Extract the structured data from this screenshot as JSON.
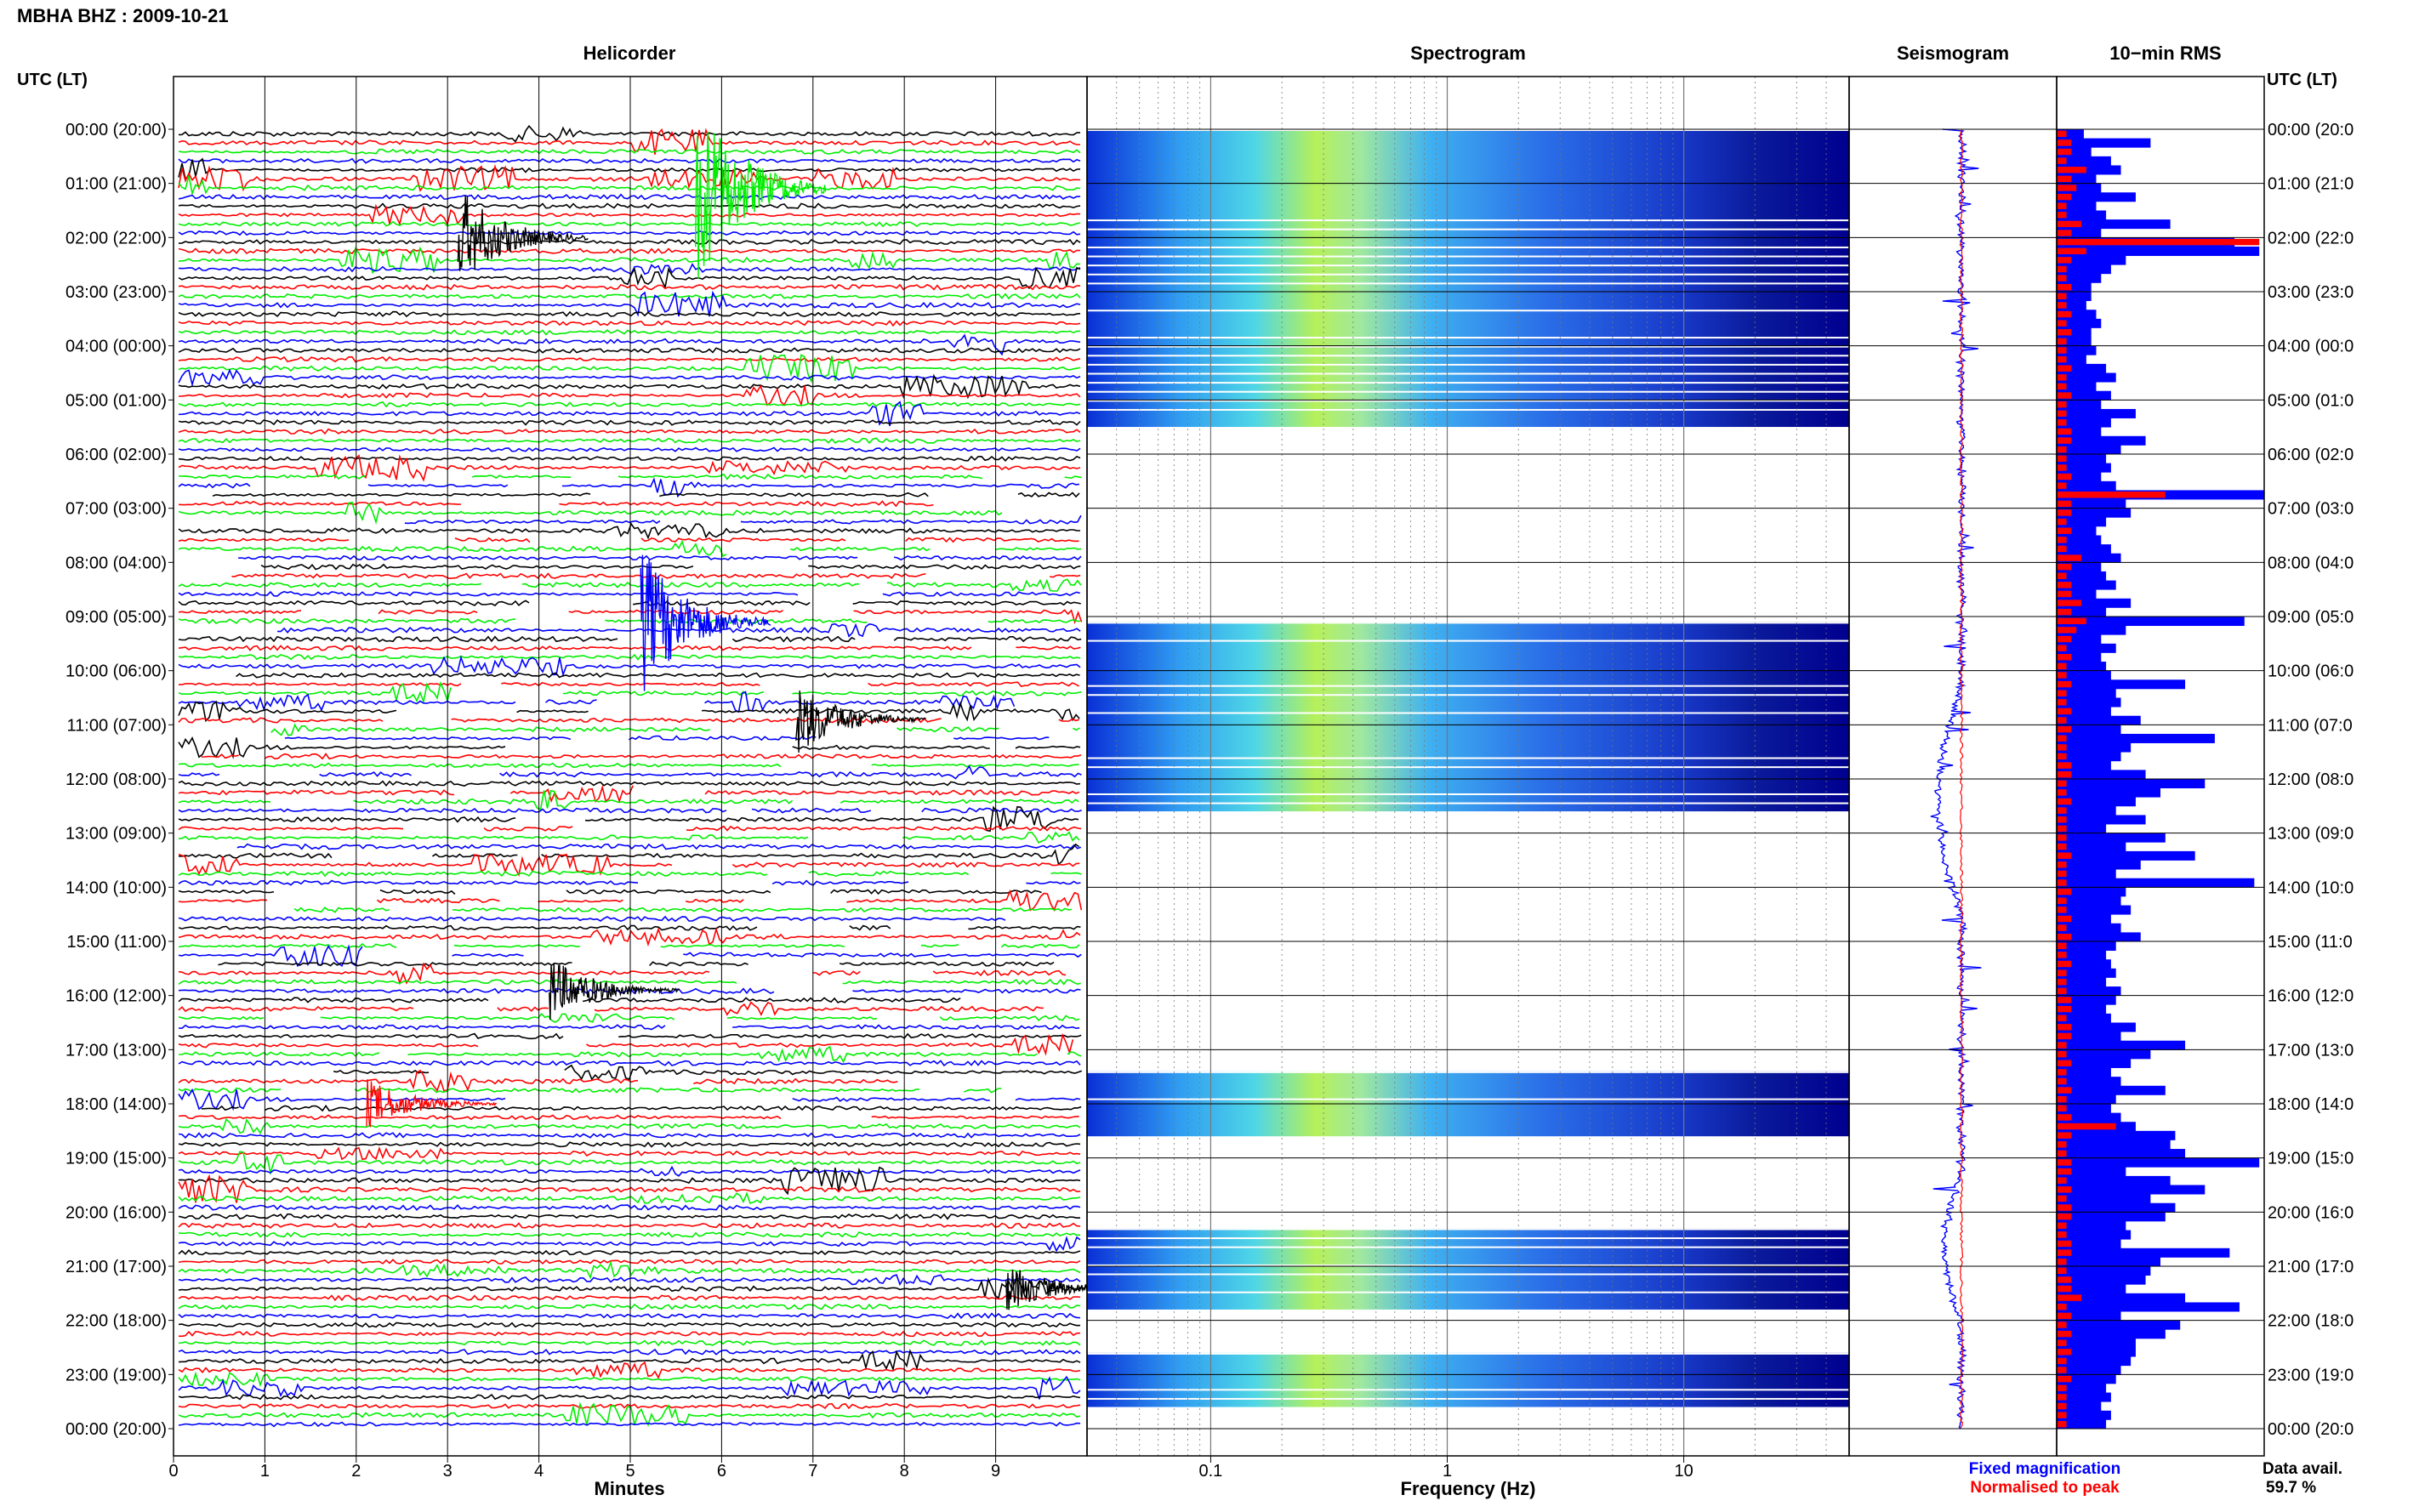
{
  "title": "MBHA BHZ : 2009-10-21",
  "utc_lt_label": "UTC (LT)",
  "panels": {
    "helicorder": "Helicorder",
    "spectrogram": "Spectrogram",
    "seismogram": "Seismogram",
    "rms": "10−min RMS"
  },
  "hour_labels": [
    "00:00 (20:00)",
    "01:00 (21:00)",
    "02:00 (22:00)",
    "03:00 (23:00)",
    "04:00 (00:00)",
    "05:00 (01:00)",
    "06:00 (02:00)",
    "07:00 (03:00)",
    "08:00 (04:00)",
    "09:00 (05:00)",
    "10:00 (06:00)",
    "11:00 (07:00)",
    "12:00 (08:00)",
    "13:00 (09:00)",
    "14:00 (10:00)",
    "15:00 (11:00)",
    "16:00 (12:00)",
    "17:00 (13:00)",
    "18:00 (14:00)",
    "19:00 (15:00)",
    "20:00 (16:00)",
    "21:00 (17:00)",
    "22:00 (18:00)",
    "23:00 (19:00)",
    "00:00 (20:00)"
  ],
  "right_hour_labels": [
    "00:00 (20:0",
    "01:00 (21:0",
    "02:00 (22:0",
    "03:00 (23:0",
    "04:00 (00:0",
    "05:00 (01:0",
    "06:00 (02:0",
    "07:00 (03:0",
    "08:00 (04:0",
    "09:00 (05:0",
    "10:00 (06:0",
    "11:00 (07:0",
    "12:00 (08:0",
    "13:00 (09:0",
    "14:00 (10:0",
    "15:00 (11:0",
    "16:00 (12:0",
    "17:00 (13:0",
    "18:00 (14:0",
    "19:00 (15:0",
    "20:00 (16:0",
    "21:00 (17:0",
    "22:00 (18:0",
    "23:00 (19:0",
    "00:00 (20:0"
  ],
  "x_axis": {
    "minutes_label": "Minutes",
    "minute_ticks": [
      "0",
      "1",
      "2",
      "3",
      "4",
      "5",
      "6",
      "7",
      "8",
      "9"
    ],
    "frequency_label": "Frequency (Hz)",
    "frequency_ticks": [
      "0.1",
      "1",
      "10"
    ]
  },
  "legend": {
    "fixed": "Fixed magnification",
    "normalised": "Normalised to peak",
    "fixed_color": "#0000ff",
    "normalised_color": "#ff0000"
  },
  "data_avail": {
    "label": "Data avail.",
    "value": "59.7 %"
  },
  "colors": {
    "trace_cycle": [
      "#000000",
      "#ff0000",
      "#00ee00",
      "#0000ff"
    ],
    "spectrogram_low": "#00008f",
    "spectrogram_mid": "#22aaff",
    "spectrogram_high": "#ddff44",
    "rms_fixed": "#0000ff",
    "rms_normalised": "#ff0000"
  },
  "chart_data": {
    "type": "heatmap",
    "title": "MBHA BHZ : 2009-10-21",
    "helicorder": {
      "xlabel": "Minutes",
      "xlim": [
        0,
        10
      ],
      "hours": 24,
      "lines_per_hour": 6
    },
    "spectrogram": {
      "xlabel": "Frequency (Hz)",
      "xlim": [
        0.03,
        50
      ],
      "xscale": "log",
      "active_hours": [
        [
          0,
          5.5
        ],
        [
          9.1,
          12.6
        ],
        [
          17.4,
          18.6
        ],
        [
          20.3,
          21.8
        ],
        [
          22.6,
          23.6
        ]
      ]
    },
    "rms": {
      "title": "10−min RMS",
      "fixed": [
        0.55,
        1.9,
        0.7,
        1.1,
        1.3,
        0.8,
        0.9,
        1.6,
        0.8,
        1.0,
        2.3,
        0.9,
        3.6,
        4.1,
        1.4,
        1.1,
        0.9,
        0.7,
        0.7,
        0.6,
        0.8,
        0.9,
        0.7,
        0.7,
        0.8,
        0.6,
        1.0,
        1.2,
        0.8,
        1.1,
        0.9,
        1.6,
        1.1,
        0.9,
        1.8,
        1.3,
        1.0,
        1.1,
        0.9,
        1.2,
        4.2,
        1.4,
        1.5,
        1.0,
        0.8,
        0.9,
        1.1,
        1.3,
        0.9,
        1.0,
        1.2,
        0.8,
        1.5,
        1.0,
        3.8,
        1.4,
        0.9,
        1.2,
        0.9,
        1.0,
        1.1,
        2.6,
        1.2,
        1.3,
        1.1,
        1.7,
        1.3,
        3.2,
        1.5,
        1.3,
        1.1,
        1.8,
        3.0,
        2.1,
        1.6,
        1.2,
        1.8,
        1.0,
        2.2,
        1.4,
        2.8,
        1.7,
        1.2,
        4.0,
        1.4,
        1.3,
        1.5,
        1.1,
        1.3,
        1.7,
        1.2,
        1.0,
        1.1,
        1.2,
        1.0,
        1.3,
        1.2,
        1.0,
        1.1,
        1.6,
        1.3,
        2.6,
        1.9,
        1.5,
        1.1,
        1.3,
        2.2,
        1.2,
        1.1,
        1.3,
        1.6,
        2.4,
        2.3,
        2.6,
        4.1,
        1.4,
        2.3,
        3.0,
        1.9,
        2.4,
        2.2,
        1.4,
        1.5,
        1.3,
        3.5,
        2.1,
        1.9,
        1.8,
        1.4,
        2.6,
        3.7,
        1.3,
        2.5,
        2.2,
        1.6,
        1.6,
        1.5,
        1.3,
        1.2,
        1.0,
        1.1,
        0.9,
        1.1,
        1.0
      ],
      "normalised": [
        0.2,
        0.3,
        0.3,
        0.2,
        0.6,
        0.3,
        0.4,
        0.3,
        0.2,
        0.2,
        0.5,
        0.3,
        4.1,
        0.6,
        0.3,
        0.2,
        0.2,
        0.3,
        0.2,
        0.2,
        0.3,
        0.2,
        0.3,
        0.2,
        0.2,
        0.2,
        0.3,
        0.2,
        0.2,
        0.3,
        0.2,
        0.2,
        0.2,
        0.3,
        0.3,
        0.2,
        0.2,
        0.2,
        0.3,
        0.2,
        2.2,
        0.3,
        0.3,
        0.2,
        0.3,
        0.2,
        0.2,
        0.5,
        0.3,
        0.2,
        0.3,
        0.3,
        0.5,
        0.3,
        0.6,
        0.4,
        0.3,
        0.2,
        0.3,
        0.2,
        0.2,
        0.3,
        0.2,
        0.2,
        0.3,
        0.2,
        0.3,
        0.2,
        0.2,
        0.2,
        0.3,
        0.3,
        0.2,
        0.2,
        0.3,
        0.2,
        0.2,
        0.2,
        0.2,
        0.2,
        0.3,
        0.2,
        0.2,
        0.2,
        0.3,
        0.2,
        0.2,
        0.3,
        0.2,
        0.3,
        0.2,
        0.2,
        0.3,
        0.2,
        0.2,
        0.2,
        0.3,
        0.3,
        0.2,
        0.3,
        0.3,
        0.2,
        0.2,
        0.3,
        0.2,
        0.2,
        0.3,
        0.2,
        0.2,
        0.3,
        1.2,
        0.3,
        0.2,
        0.2,
        0.3,
        0.3,
        0.2,
        0.3,
        0.2,
        0.3,
        0.3,
        0.2,
        0.2,
        0.3,
        0.3,
        0.2,
        0.2,
        0.3,
        0.3,
        0.5,
        0.2,
        0.3,
        0.2,
        0.3,
        0.2,
        0.3,
        0.2,
        0.2,
        0.3,
        0.2,
        0.2,
        0.2,
        0.2,
        0.2
      ]
    }
  }
}
